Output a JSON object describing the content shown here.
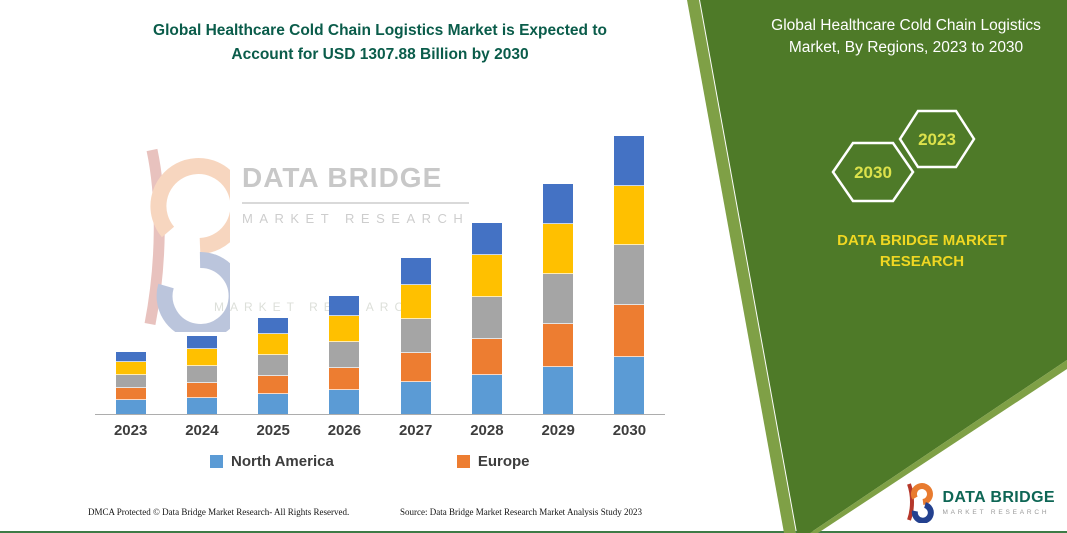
{
  "page": {
    "main_title_line1": "Global Healthcare Cold Chain Logistics Market is Expected to",
    "main_title_line2": "Account for USD 1307.88 Billion by 2030"
  },
  "side_panel": {
    "title": "Global Healthcare Cold Chain Logistics Market, By Regions, 2023 to 2030",
    "hexagon_left": "2030",
    "hexagon_right": "2023",
    "brand_line": "DATA BRIDGE MARKET RESEARCH"
  },
  "watermark": {
    "brand": "DATA BRIDGE",
    "sub": "MARKET RESEARCH",
    "sub2": "MARKET RESEARCH"
  },
  "footer": {
    "dmca": "DMCA Protected © Data Bridge Market Research- All Rights Reserved.",
    "source": "Source: Data Bridge Market Research Market Analysis Study 2023"
  },
  "corner_logo": {
    "brand": "DATA BRIDGE",
    "sub": "MARKET RESEARCH"
  },
  "colors": {
    "panel_green": "#4E7A28",
    "panel_edge_stripe": "#7FA046",
    "title_green": "#0A5C4A",
    "brand_yellow": "#F0D722",
    "hexagon_year_yellow": "#DDE24B",
    "axis_gray": "#ADADAD",
    "label_dark": "#3D3D3D",
    "bottom_line_green": "#3E7B46"
  },
  "chart_data": {
    "type": "bar",
    "stacked": true,
    "title": "Global Healthcare Cold Chain Logistics Market is Expected to Account for USD 1307.88 Billion by 2030",
    "unit": "USD Billion",
    "categories": [
      "2023",
      "2024",
      "2025",
      "2026",
      "2027",
      "2028",
      "2029",
      "2030"
    ],
    "series": [
      {
        "name": "North America",
        "color": "#5B9BD5",
        "in_legend": true,
        "values": [
          66,
          75,
          94,
          113,
          150,
          183,
          221,
          270
        ]
      },
      {
        "name": "Europe",
        "color": "#ED7D31",
        "in_legend": true,
        "values": [
          56,
          71,
          85,
          103,
          136,
          169,
          202,
          245
        ]
      },
      {
        "name": "unlabeled-region-gray",
        "color": "#A5A5A5",
        "in_legend": false,
        "values": [
          61,
          80,
          99,
          122,
          160,
          197,
          235,
          280
        ]
      },
      {
        "name": "unlabeled-region-yellow",
        "color": "#FFC000",
        "in_legend": false,
        "values": [
          61,
          80,
          99,
          122,
          160,
          197,
          235,
          280
        ]
      },
      {
        "name": "unlabeled-region-darkblue",
        "color": "#4472C4",
        "in_legend": false,
        "values": [
          47,
          61,
          75,
          94,
          127,
          155,
          188,
          232.88
        ]
      }
    ],
    "totals": [
      291,
      367,
      452,
      554,
      733,
      901,
      1081,
      1307.88
    ],
    "ylim": [
      0,
      1307.88
    ],
    "x_axis_visible": true,
    "y_axis_visible": false,
    "grid": false,
    "legend_position": "bottom",
    "note": "No y-axis shown in source; segment values estimated from bar heights scaled so the 2030 total equals USD 1307.88 billion stated in the title."
  }
}
